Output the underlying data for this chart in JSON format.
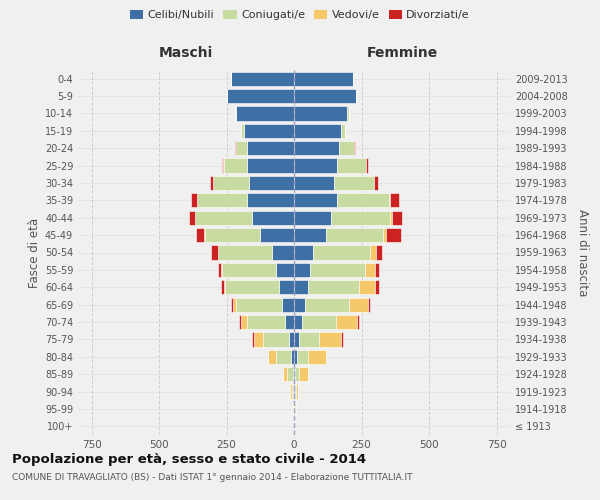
{
  "age_groups": [
    "100+",
    "95-99",
    "90-94",
    "85-89",
    "80-84",
    "75-79",
    "70-74",
    "65-69",
    "60-64",
    "55-59",
    "50-54",
    "45-49",
    "40-44",
    "35-39",
    "30-34",
    "25-29",
    "20-24",
    "15-19",
    "10-14",
    "5-9",
    "0-4"
  ],
  "birth_years": [
    "≤ 1913",
    "1914-1918",
    "1919-1923",
    "1924-1928",
    "1929-1933",
    "1934-1938",
    "1939-1943",
    "1944-1948",
    "1949-1953",
    "1954-1958",
    "1959-1963",
    "1964-1968",
    "1969-1973",
    "1974-1978",
    "1979-1983",
    "1984-1988",
    "1989-1993",
    "1994-1998",
    "1999-2003",
    "2004-2008",
    "2009-2013"
  ],
  "maschi": {
    "celibi": [
      1,
      1,
      3,
      5,
      10,
      20,
      35,
      45,
      55,
      65,
      80,
      125,
      155,
      175,
      165,
      175,
      175,
      185,
      215,
      248,
      232
    ],
    "coniugati": [
      0,
      2,
      5,
      20,
      55,
      95,
      140,
      170,
      200,
      200,
      200,
      205,
      210,
      185,
      135,
      85,
      38,
      10,
      4,
      2,
      0
    ],
    "vedovi": [
      0,
      2,
      5,
      15,
      30,
      35,
      20,
      10,
      5,
      5,
      3,
      3,
      2,
      1,
      1,
      3,
      2,
      0,
      0,
      0,
      0
    ],
    "divorziati": [
      0,
      0,
      0,
      2,
      3,
      5,
      8,
      10,
      10,
      12,
      25,
      30,
      22,
      20,
      10,
      5,
      2,
      0,
      0,
      0,
      0
    ]
  },
  "femmine": {
    "nubili": [
      1,
      1,
      3,
      5,
      10,
      18,
      30,
      40,
      50,
      60,
      72,
      118,
      138,
      158,
      148,
      158,
      168,
      173,
      198,
      228,
      218
    ],
    "coniugate": [
      0,
      2,
      5,
      15,
      40,
      75,
      125,
      165,
      192,
      202,
      208,
      212,
      218,
      192,
      148,
      108,
      55,
      15,
      5,
      3,
      0
    ],
    "vedove": [
      0,
      3,
      8,
      30,
      68,
      82,
      78,
      68,
      58,
      38,
      22,
      12,
      8,
      5,
      2,
      2,
      1,
      0,
      0,
      0,
      0
    ],
    "divorziate": [
      0,
      0,
      0,
      2,
      2,
      5,
      8,
      10,
      15,
      15,
      25,
      55,
      35,
      35,
      12,
      5,
      2,
      0,
      0,
      0,
      0
    ]
  },
  "colors": {
    "celibi": "#3e6fa5",
    "coniugati": "#c8dba0",
    "vedovi": "#f5c96a",
    "divorziati": "#cc2222"
  },
  "xlim": 800,
  "title": "Popolazione per età, sesso e stato civile - 2014",
  "subtitle": "COMUNE DI TRAVAGLIATO (BS) - Dati ISTAT 1° gennaio 2014 - Elaborazione TUTTITALIA.IT",
  "ylabel_left": "Fasce di età",
  "ylabel_right": "Anni di nascita",
  "xlabel_left": "Maschi",
  "xlabel_right": "Femmine",
  "bg_color": "#f0f0f0",
  "grid_color": "#cccccc"
}
